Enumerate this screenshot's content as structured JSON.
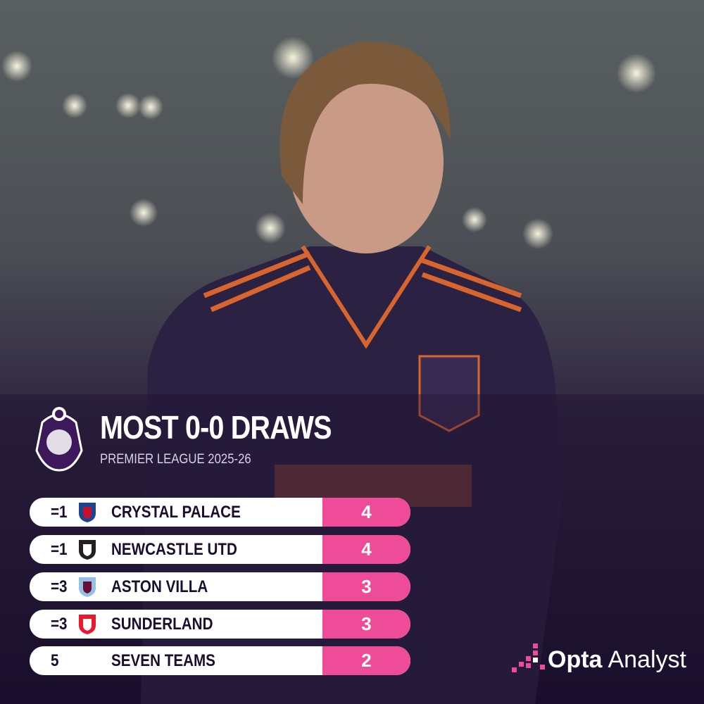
{
  "header": {
    "title": "MOST 0-0 DRAWS",
    "subtitle": "PREMIER LEAGUE 2025-26"
  },
  "table": {
    "rows": [
      [
        "=1",
        "CRYSTAL PALACE",
        4
      ],
      [
        "=1",
        "NEWCASTLE UTD",
        4
      ],
      [
        "=3",
        "ASTON VILLA",
        3
      ],
      [
        "=3",
        "SUNDERLAND",
        3
      ],
      [
        "5",
        "SEVEN TEAMS",
        2
      ]
    ]
  },
  "brand": {
    "name": "Opta",
    "product": "Analyst"
  }
}
